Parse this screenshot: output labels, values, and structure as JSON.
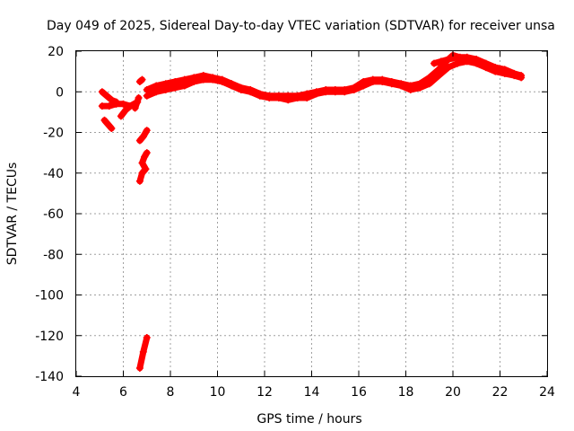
{
  "chart_data": {
    "type": "scatter",
    "title": "Day 049 of 2025, Sidereal Day-to-day VTEC variation (SDTVAR) for receiver unsa",
    "xlabel": "GPS time / hours",
    "ylabel": "SDTVAR / TECUs",
    "xlim": [
      4,
      24
    ],
    "ylim": [
      -140,
      20
    ],
    "xticks": [
      4,
      6,
      8,
      10,
      12,
      14,
      16,
      18,
      20,
      22,
      24
    ],
    "yticks": [
      -140,
      -120,
      -100,
      -80,
      -60,
      -40,
      -20,
      0,
      20
    ],
    "grid": true,
    "series": [
      {
        "name": "SDTVAR",
        "color": "#ff0000",
        "segments": [
          {
            "x": [
              5.1,
              5.3,
              5.5,
              5.7
            ],
            "y": [
              0,
              -2,
              -4,
              -5
            ]
          },
          {
            "x": [
              5.1,
              5.4,
              5.7,
              6.0,
              6.3,
              6.6
            ],
            "y": [
              -7,
              -7,
              -6,
              -6,
              -7,
              -5
            ]
          },
          {
            "x": [
              5.2,
              5.35,
              5.5
            ],
            "y": [
              -14,
              -16,
              -18
            ]
          },
          {
            "x": [
              5.9,
              6.1,
              6.3
            ],
            "y": [
              -12,
              -9,
              -7
            ]
          },
          {
            "x": [
              6.5,
              6.65
            ],
            "y": [
              -8,
              -3
            ]
          },
          {
            "x": [
              6.7,
              6.8
            ],
            "y": [
              5,
              6
            ]
          },
          {
            "x": [
              6.7,
              6.85,
              7.0
            ],
            "y": [
              -24,
              -22,
              -19
            ]
          },
          {
            "x": [
              6.7,
              6.8,
              6.95,
              6.8,
              6.9,
              7.0
            ],
            "y": [
              -44,
              -40,
              -38,
              -35,
              -32,
              -30
            ]
          },
          {
            "x": [
              6.7,
              6.85,
              7.0
            ],
            "y": [
              -136,
              -128,
              -121
            ]
          },
          {
            "x": [
              7.0,
              7.4,
              7.8,
              8.2,
              8.6,
              9.0,
              9.4,
              9.8,
              10.2,
              10.6,
              11.0,
              11.4,
              11.8,
              12.2,
              12.6,
              13.0,
              13.4,
              13.8,
              14.2,
              14.6,
              15.0,
              15.4,
              15.8,
              16.2,
              16.6,
              17.0,
              17.4,
              17.8,
              18.2,
              18.6,
              19.0,
              19.4,
              19.8,
              20.2,
              20.6,
              21.0,
              21.4,
              21.8,
              22.2,
              22.6,
              22.9
            ],
            "y": [
              -2,
              0,
              1,
              2,
              3,
              5,
              6,
              6,
              5,
              3,
              1,
              0,
              -2,
              -3,
              -3,
              -4,
              -3,
              -3,
              -1,
              0,
              0,
              0,
              1,
              3,
              5,
              5,
              4,
              3,
              1,
              2,
              4,
              8,
              12,
              14,
              15,
              14,
              12,
              10,
              9,
              8,
              7
            ]
          },
          {
            "x": [
              7.0,
              7.4,
              7.8,
              8.2,
              8.6,
              9.0,
              9.4,
              9.8,
              10.2,
              10.6,
              11.0,
              11.4,
              11.8,
              12.2,
              12.6,
              13.0,
              13.4,
              13.8,
              14.2,
              14.6,
              15.0,
              15.4,
              15.8,
              16.2,
              16.6,
              17.0,
              17.4,
              17.8,
              18.2,
              18.6,
              19.0,
              19.4,
              19.8,
              20.2,
              20.6,
              21.0,
              21.4,
              21.8,
              22.2,
              22.6,
              22.9
            ],
            "y": [
              1,
              3,
              4,
              5,
              6,
              7,
              8,
              7,
              6,
              4,
              2,
              1,
              -1,
              -2,
              -2,
              -2,
              -2,
              -1,
              0,
              1,
              1,
              1,
              2,
              5,
              6,
              6,
              5,
              4,
              3,
              4,
              7,
              11,
              16,
              17,
              17,
              16,
              14,
              12,
              11,
              9,
              8
            ]
          },
          {
            "x": [
              19.2,
              19.5,
              19.8,
              20.0,
              20.3
            ],
            "y": [
              14,
              15,
              16,
              18,
              17
            ]
          }
        ]
      }
    ]
  }
}
